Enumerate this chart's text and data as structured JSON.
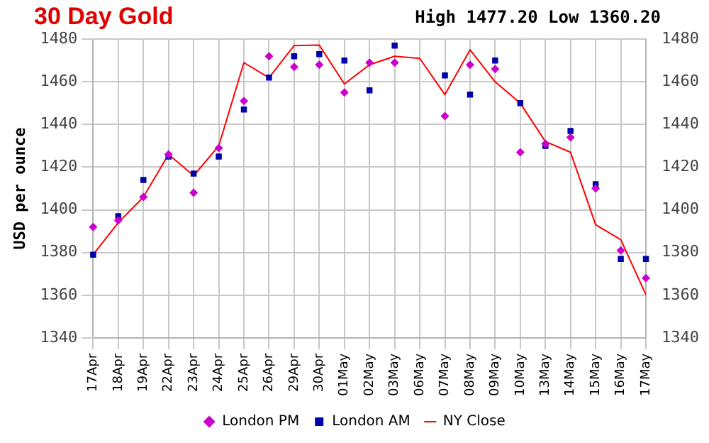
{
  "chart_data": {
    "type": "line",
    "title": "30 Day Gold",
    "ylabel": "USD per ounce",
    "annotations": [
      "High 1477.20 Low 1360.20"
    ],
    "categories": [
      "17Apr",
      "18Apr",
      "19Apr",
      "22Apr",
      "23Apr",
      "24Apr",
      "25Apr",
      "26Apr",
      "29Apr",
      "30Apr",
      "01May",
      "02May",
      "03May",
      "06May",
      "07May",
      "08May",
      "09May",
      "10May",
      "13May",
      "14May",
      "15May",
      "16May",
      "17May"
    ],
    "series": [
      {
        "name": "NY Close",
        "color": "#ff0000",
        "marker": "none",
        "values": [
          1379,
          1394,
          1406,
          1426,
          1416,
          1430,
          1469,
          1462,
          1477,
          1477.2,
          1459,
          1468,
          1472,
          1471,
          1454,
          1475,
          1460,
          1450,
          1432,
          1427,
          1393,
          1386,
          1360.2
        ]
      },
      {
        "name": "London AM",
        "type": "scatter",
        "color": "#0000aa",
        "marker": "square",
        "values": [
          1379,
          1397,
          1414,
          1425,
          1417,
          1425,
          1447,
          1462,
          1472,
          1473,
          1470,
          1456,
          1477,
          null,
          1463,
          1454,
          1470,
          1450,
          1430,
          1437,
          1412,
          1377,
          1377
        ]
      },
      {
        "name": "London PM",
        "type": "scatter",
        "color": "#cc00cc",
        "marker": "diamond",
        "values": [
          1392,
          1395,
          1406,
          1426,
          1408,
          1429,
          1451,
          1472,
          1467,
          1468,
          1455,
          1469,
          1469,
          null,
          1444,
          1468,
          1466,
          1427,
          1431,
          1434,
          1410,
          1381,
          1368
        ]
      }
    ],
    "ylim": [
      1340,
      1480
    ],
    "yticks": [
      1340,
      1360,
      1380,
      1400,
      1420,
      1440,
      1460,
      1480
    ],
    "y2lim": [
      1340,
      1480
    ],
    "y2ticks": [
      1340,
      1360,
      1380,
      1400,
      1420,
      1440,
      1460,
      1480
    ],
    "grid": true,
    "legend": "bottom"
  }
}
